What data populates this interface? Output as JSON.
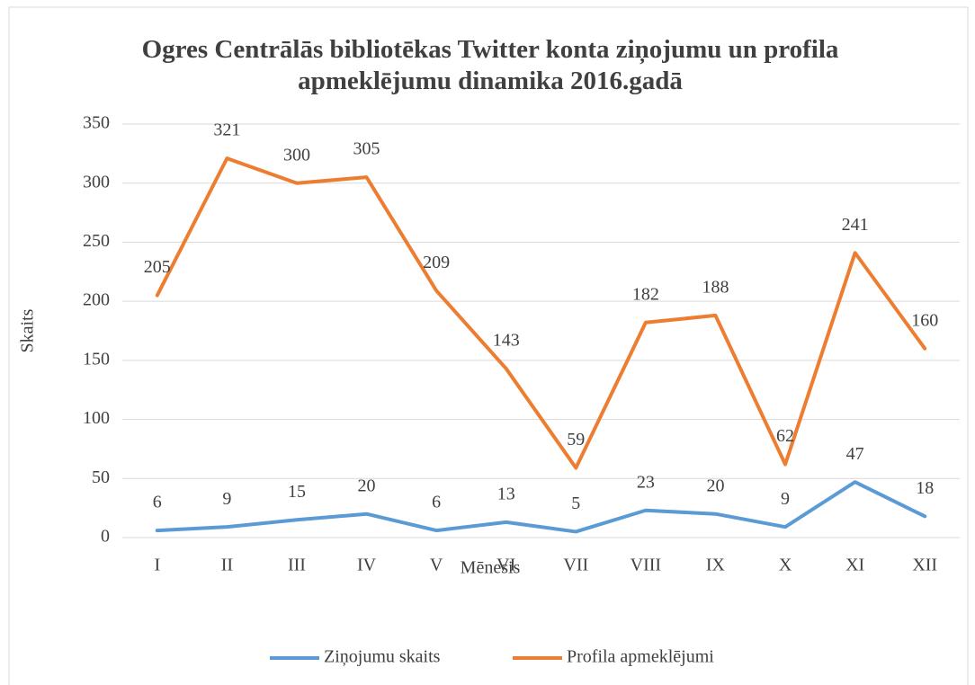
{
  "chart_data": {
    "type": "line",
    "title": "Ogres Centrālās bibliotēkas Twitter konta ziņojumu un profila apmeklējumu dinamika 2016.gadā",
    "x_label": "Mēnesis",
    "y_label": "Skaits",
    "categories": [
      "I",
      "II",
      "III",
      "IV",
      "V",
      "VI",
      "VII",
      "VIII",
      "IX",
      "X",
      "XI",
      "XII"
    ],
    "series": [
      {
        "name": "Ziņojumu skaits",
        "color": "#5b9bd5",
        "values": [
          6,
          9,
          15,
          20,
          6,
          13,
          5,
          23,
          20,
          9,
          47,
          18
        ]
      },
      {
        "name": "Profila apmeklējumi",
        "color": "#ed7d31",
        "values": [
          205,
          321,
          300,
          305,
          209,
          143,
          59,
          182,
          188,
          62,
          241,
          160
        ]
      }
    ],
    "ylim": [
      0,
      350
    ],
    "yticks": [
      0,
      50,
      100,
      150,
      200,
      250,
      300,
      350
    ],
    "grid": true,
    "legend": "bottom"
  }
}
